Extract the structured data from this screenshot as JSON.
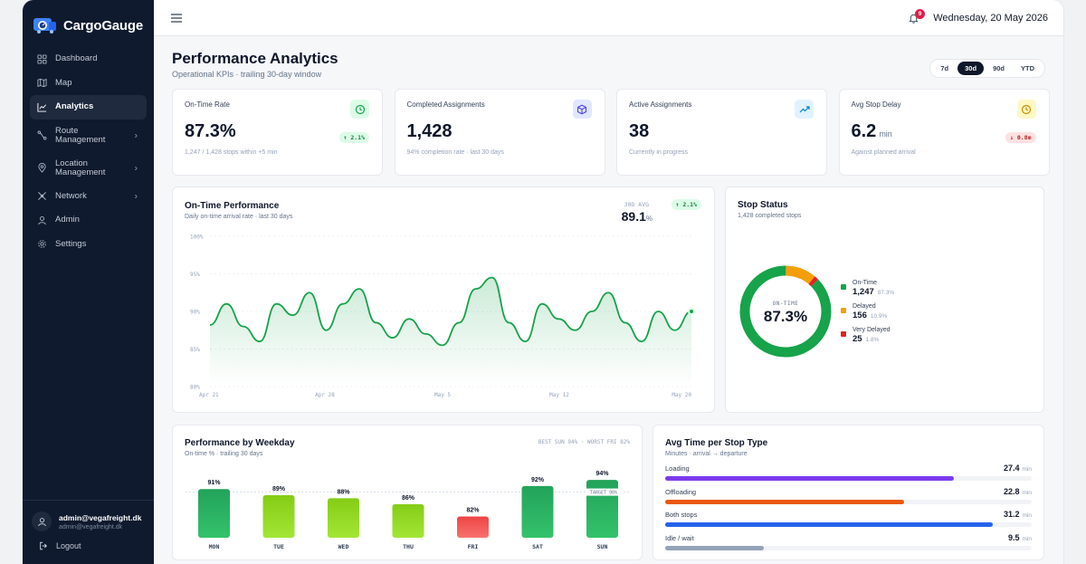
{
  "brand": {
    "name": "CargoGauge"
  },
  "sidebar": {
    "items": [
      {
        "label": "Dashboard",
        "icon": "grid-icon"
      },
      {
        "label": "Map",
        "icon": "map-icon"
      },
      {
        "label": "Analytics",
        "icon": "chart-icon",
        "active": true
      },
      {
        "label": "Route\nManagement",
        "icon": "route-icon"
      },
      {
        "label": "Location\nManagement",
        "icon": "pin-icon"
      },
      {
        "label": "Network",
        "icon": "network-icon"
      },
      {
        "label": "Admin",
        "icon": "user-icon"
      },
      {
        "label": "Settings",
        "icon": "gear-icon"
      }
    ],
    "user_name": "admin@vegafreight.dk",
    "user_email": "admin@vegafreight.dk",
    "logout": "Logout"
  },
  "topbar": {
    "notif_count": "9",
    "date": "Wednesday, 20 May 2026"
  },
  "page": {
    "title": "Performance Analytics",
    "subtitle": "Operational KPIs · trailing 30-day window"
  },
  "range": {
    "options": [
      "7d",
      "30d",
      "90d",
      "YTD"
    ],
    "selected": "30d"
  },
  "kpis": [
    {
      "label": "On-Time Rate",
      "value": "87.3%",
      "unit": "",
      "note": "1,247 / 1,428 stops within +5 min",
      "delta": "↑ 2.1%",
      "dir": "up",
      "icon": "clock-icon",
      "icon_bg": "#dcfce7",
      "icon_color": "#16a34a"
    },
    {
      "label": "Completed Assignments",
      "value": "1,428",
      "unit": "",
      "note": "94% completion rate · last 30 days",
      "delta": "",
      "icon": "box-icon",
      "icon_bg": "#e0e7ff",
      "icon_color": "#4f46e5"
    },
    {
      "label": "Active Assignments",
      "value": "38",
      "unit": "",
      "note": "Currently in progress",
      "delta": "",
      "icon": "trend-icon",
      "icon_bg": "#e0f2fe",
      "icon_color": "#0284c7"
    },
    {
      "label": "Avg Stop Delay",
      "value": "6.2",
      "unit": "min",
      "note": "Against planned arrival",
      "delta": "↓ 0.8m",
      "dir": "down",
      "icon": "clock-icon",
      "icon_bg": "#fef9c3",
      "icon_color": "#ca8a04"
    }
  ],
  "ontime": {
    "title": "On-Time Performance",
    "subtitle": "Daily on-time arrival rate · last 30 days",
    "avg_label": "30D AVG",
    "avg_value": "89.1",
    "avg_unit": "%",
    "delta": "↑ 2.1%",
    "chart_data": {
      "type": "area",
      "y_ticks": [
        "100%",
        "95%",
        "90%",
        "85%",
        "80%"
      ],
      "ylim": [
        80,
        100
      ],
      "x_ticks": [
        "Apr 21",
        "Apr 28",
        "May 5",
        "May 12",
        "May 20"
      ],
      "series": [
        {
          "values": [
            88.2,
            91.0,
            88.0,
            86.0,
            91.0,
            89.5,
            92.5,
            87.5,
            91.0,
            93.0,
            88.5,
            86.5,
            89.0,
            87.0,
            85.5,
            88.5,
            93.0,
            94.5,
            88.5,
            86.0,
            91.0,
            89.0,
            87.5,
            90.0,
            92.5,
            88.5,
            86.0,
            90.0,
            87.5,
            90.0
          ]
        }
      ],
      "color": "#16a34a"
    }
  },
  "stop_status": {
    "title": "Stop Status",
    "subtitle": "1,428 completed stops",
    "center_label": "ON-TIME",
    "center_value": "87.3%",
    "chart_data": {
      "type": "pie",
      "slices": [
        {
          "label": "On-Time",
          "value": 1247,
          "value_text": "1,247",
          "pct": "87.3%",
          "color": "#16a34a"
        },
        {
          "label": "Delayed",
          "value": 156,
          "value_text": "156",
          "pct": "10.9%",
          "color": "#f59e0b"
        },
        {
          "label": "Very Delayed",
          "value": 25,
          "value_text": "25",
          "pct": "1.8%",
          "color": "#dc2626"
        }
      ]
    }
  },
  "weekday": {
    "title": "Performance by Weekday",
    "subtitle": "On-time % · trailing 30 days",
    "best_worst": "BEST SUN 94% · WORST FRI 82%",
    "target_label": "TARGET 90%",
    "chart_data": {
      "type": "bar",
      "categories": [
        "MON",
        "TUE",
        "WED",
        "THU",
        "FRI",
        "SAT",
        "SUN"
      ],
      "values": [
        91,
        89,
        88,
        86,
        82,
        92,
        94
      ],
      "value_labels": [
        "91%",
        "89%",
        "88%",
        "86%",
        "82%",
        "92%",
        "94%"
      ],
      "target": 90,
      "colors": {
        "above": "#22a35a",
        "mid": "#84cc16",
        "low": "#ef4444"
      }
    }
  },
  "stop_type": {
    "title": "Avg Time per Stop Type",
    "subtitle": "Minutes · arrival → departure",
    "unit": "min",
    "rows": [
      {
        "label": "Loading",
        "value": "27.4",
        "frac": 0.88,
        "color": "#7c3aed"
      },
      {
        "label": "Offloading",
        "value": "22.8",
        "frac": 0.73,
        "color": "#ea580c"
      },
      {
        "label": "Both stops",
        "value": "31.2",
        "frac": 1.0,
        "color": "#2563eb"
      },
      {
        "label": "Idle / wait",
        "value": "9.5",
        "frac": 0.3,
        "color": "#94a3b8"
      }
    ]
  }
}
